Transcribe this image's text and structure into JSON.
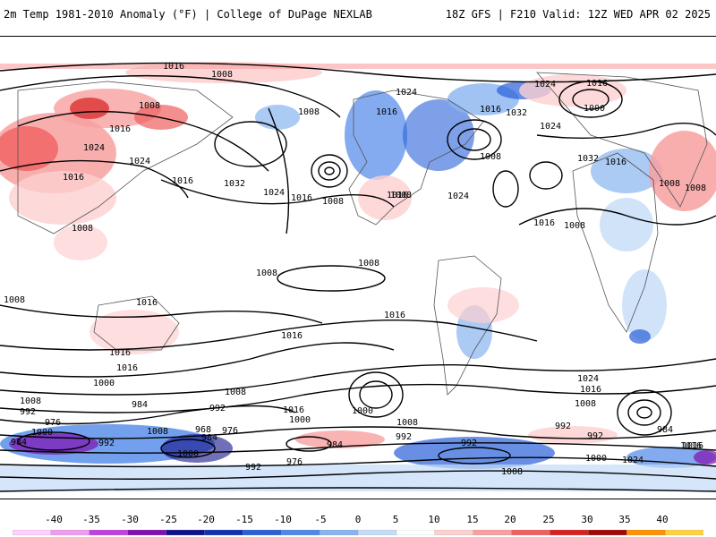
{
  "header": {
    "left_title": "2m Temp 1981-2010 Anomaly (°F) | College of DuPage NEXLAB",
    "right_title": "18Z GFS | F210 Valid: 12Z WED APR 02 2025"
  },
  "isobar_labels": [
    "1016",
    "1008",
    "1008",
    "1016",
    "1024",
    "1024",
    "1016",
    "1016",
    "1032",
    "1024",
    "1016",
    "1008",
    "1008",
    "1024",
    "1016",
    "1008",
    "1024",
    "1016",
    "1032",
    "1024",
    "1016",
    "1000",
    "1008",
    "1024",
    "1016",
    "1008",
    "1008",
    "1008",
    "1032",
    "1016",
    "1016",
    "1008",
    "1008",
    "1008",
    "1016",
    "1008",
    "1016",
    "1016",
    "1016",
    "1016",
    "1000",
    "1008",
    "992",
    "984",
    "1008",
    "992",
    "1016",
    "1000",
    "1000",
    "1008",
    "1024",
    "1016",
    "1008",
    "992",
    "984",
    "1016",
    "976",
    "1000",
    "984",
    "992",
    "968",
    "984",
    "976",
    "1008",
    "992",
    "976",
    "1000",
    "984",
    "992",
    "992",
    "992",
    "1000",
    "1024",
    "1008",
    "1016"
  ],
  "colorbar": {
    "labels": [
      "-40",
      "-35",
      "-30",
      "-25",
      "-20",
      "-15",
      "-10",
      "-5",
      "0",
      "5",
      "10",
      "15",
      "20",
      "25",
      "30",
      "35",
      "40"
    ],
    "colors": [
      "#f09af0",
      "#c040e0",
      "#8010b0",
      "#10108a",
      "#1030b0",
      "#2860d8",
      "#5088e8",
      "#88b4f0",
      "#c4dcf8",
      "#ffffff",
      "#fdd0d0",
      "#f8a0a0",
      "#f06060",
      "#d82020",
      "#a00808",
      "#ff9000",
      "#ffd040"
    ]
  }
}
